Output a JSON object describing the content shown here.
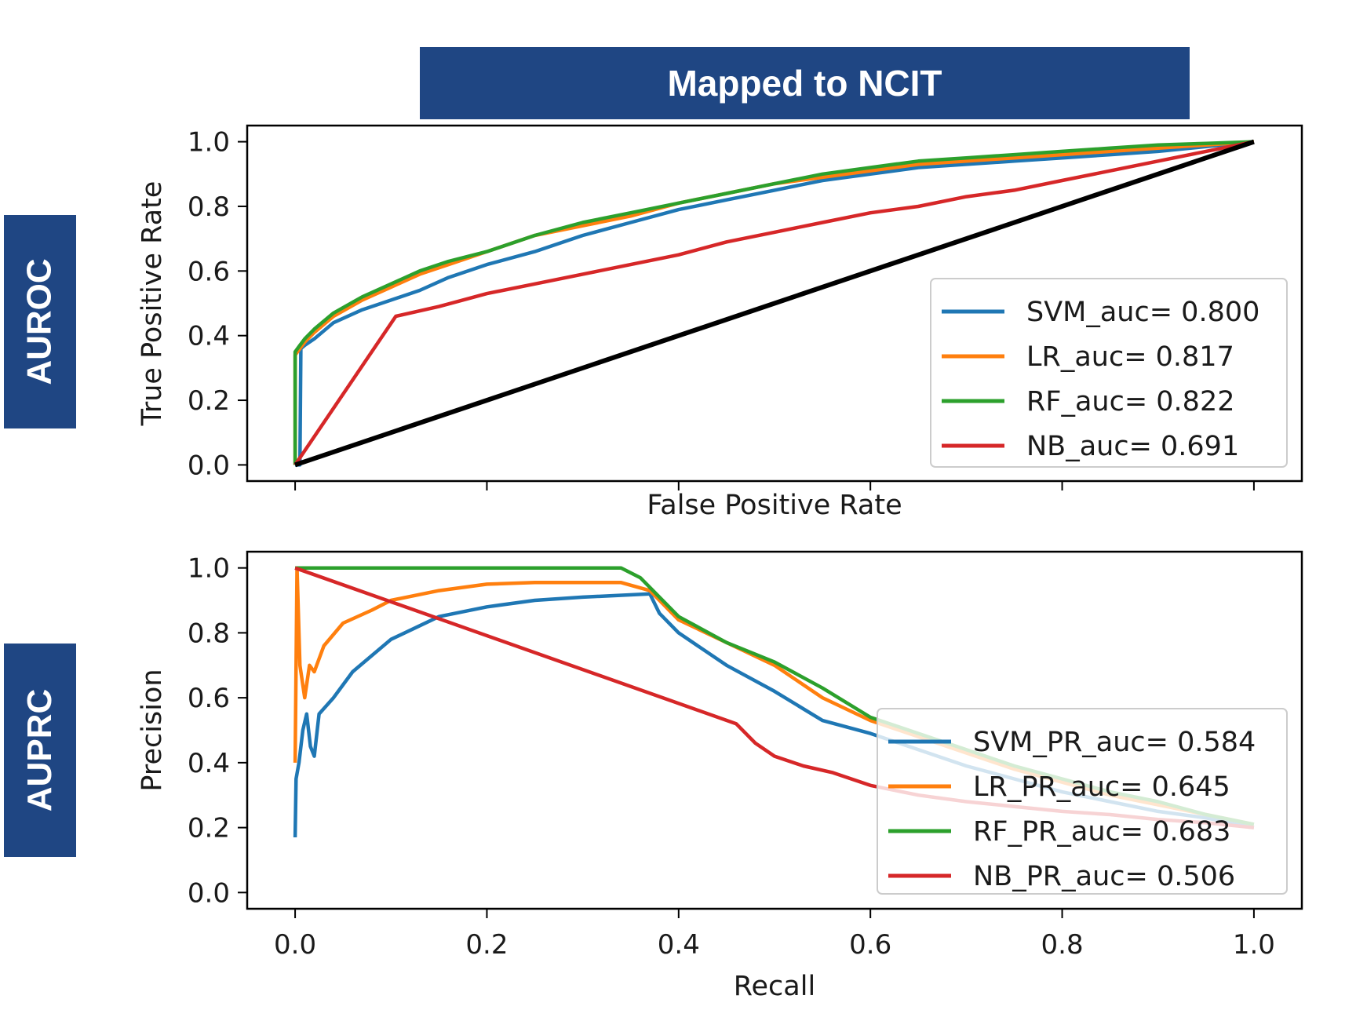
{
  "title": "Mapped to NCIT",
  "side_labels": {
    "top": "AUROC",
    "bottom": "AUPRC"
  },
  "chart_data": [
    {
      "type": "line",
      "xlabel": "False Positive Rate",
      "ylabel": "True Positive Rate",
      "xlim": [
        -0.05,
        1.05
      ],
      "ylim": [
        -0.05,
        1.05
      ],
      "xticks": [
        0.0,
        0.2,
        0.4,
        0.6,
        0.8,
        1.0
      ],
      "xtick_labels_visible": false,
      "yticks": [
        0.0,
        0.2,
        0.4,
        0.6,
        0.8,
        1.0
      ],
      "ytick_labels": [
        "0.0",
        "0.2",
        "0.4",
        "0.6",
        "0.8",
        "1.0"
      ],
      "legend_position": "lower-right",
      "series": [
        {
          "name": "SVM_auc= 0.800",
          "color": "#1f77b4",
          "x": [
            0,
            0.005,
            0.006,
            0.01,
            0.02,
            0.04,
            0.07,
            0.1,
            0.13,
            0.16,
            0.2,
            0.25,
            0.3,
            0.35,
            0.4,
            0.45,
            0.5,
            0.55,
            0.6,
            0.65,
            0.7,
            0.75,
            0.8,
            0.85,
            0.9,
            0.95,
            1.0
          ],
          "y": [
            0,
            0.0,
            0.36,
            0.37,
            0.39,
            0.44,
            0.48,
            0.51,
            0.54,
            0.58,
            0.62,
            0.66,
            0.71,
            0.75,
            0.79,
            0.82,
            0.85,
            0.88,
            0.9,
            0.92,
            0.93,
            0.94,
            0.95,
            0.96,
            0.97,
            0.985,
            1.0
          ]
        },
        {
          "name": "LR_auc= 0.817",
          "color": "#ff7f0e",
          "x": [
            0,
            0.0,
            0.005,
            0.01,
            0.02,
            0.04,
            0.07,
            0.1,
            0.13,
            0.16,
            0.2,
            0.25,
            0.3,
            0.35,
            0.4,
            0.45,
            0.5,
            0.55,
            0.6,
            0.65,
            0.7,
            0.75,
            0.8,
            0.85,
            0.9,
            0.95,
            1.0
          ],
          "y": [
            0,
            0.34,
            0.36,
            0.38,
            0.41,
            0.46,
            0.51,
            0.55,
            0.59,
            0.62,
            0.66,
            0.71,
            0.74,
            0.77,
            0.81,
            0.84,
            0.87,
            0.89,
            0.91,
            0.93,
            0.94,
            0.95,
            0.96,
            0.97,
            0.98,
            0.99,
            1.0
          ]
        },
        {
          "name": "RF_auc= 0.822",
          "color": "#2ca02c",
          "x": [
            0,
            0.0,
            0.005,
            0.01,
            0.02,
            0.04,
            0.07,
            0.1,
            0.13,
            0.16,
            0.2,
            0.25,
            0.3,
            0.35,
            0.4,
            0.45,
            0.5,
            0.55,
            0.6,
            0.65,
            0.7,
            0.75,
            0.8,
            0.85,
            0.9,
            0.95,
            1.0
          ],
          "y": [
            0,
            0.35,
            0.37,
            0.39,
            0.42,
            0.47,
            0.52,
            0.56,
            0.6,
            0.63,
            0.66,
            0.71,
            0.75,
            0.78,
            0.81,
            0.84,
            0.87,
            0.9,
            0.92,
            0.94,
            0.95,
            0.96,
            0.97,
            0.98,
            0.99,
            0.995,
            1.0
          ]
        },
        {
          "name": "NB_auc= 0.691",
          "color": "#d62728",
          "x": [
            0,
            0.105,
            0.15,
            0.2,
            0.25,
            0.3,
            0.35,
            0.4,
            0.45,
            0.5,
            0.55,
            0.6,
            0.65,
            0.7,
            0.75,
            0.8,
            0.85,
            0.9,
            0.95,
            1.0
          ],
          "y": [
            0,
            0.46,
            0.49,
            0.53,
            0.56,
            0.59,
            0.62,
            0.65,
            0.69,
            0.72,
            0.75,
            0.78,
            0.8,
            0.83,
            0.85,
            0.88,
            0.91,
            0.94,
            0.97,
            1.0
          ]
        },
        {
          "name": "",
          "color": "#000000",
          "x": [
            0,
            1
          ],
          "y": [
            0,
            1
          ]
        }
      ]
    },
    {
      "type": "line",
      "xlabel": "Recall",
      "ylabel": "Precision",
      "xlim": [
        -0.05,
        1.05
      ],
      "ylim": [
        -0.05,
        1.05
      ],
      "xticks": [
        0.0,
        0.2,
        0.4,
        0.6,
        0.8,
        1.0
      ],
      "xtick_labels": [
        "0.0",
        "0.2",
        "0.4",
        "0.6",
        "0.8",
        "1.0"
      ],
      "yticks": [
        0.0,
        0.2,
        0.4,
        0.6,
        0.8,
        1.0
      ],
      "ytick_labels": [
        "0.0",
        "0.2",
        "0.4",
        "0.6",
        "0.8",
        "1.0"
      ],
      "legend_position": "lower-right",
      "series": [
        {
          "name": "SVM_PR_auc= 0.584",
          "color": "#1f77b4",
          "x": [
            0,
            0.001,
            0.004,
            0.008,
            0.012,
            0.016,
            0.02,
            0.025,
            0.04,
            0.06,
            0.1,
            0.15,
            0.2,
            0.25,
            0.3,
            0.37,
            0.38,
            0.4,
            0.45,
            0.5,
            0.55,
            0.6,
            0.65,
            0.7,
            0.75,
            0.8,
            0.85,
            0.9,
            0.95,
            1.0
          ],
          "y": [
            0.17,
            0.35,
            0.4,
            0.5,
            0.55,
            0.45,
            0.42,
            0.55,
            0.6,
            0.68,
            0.78,
            0.85,
            0.88,
            0.9,
            0.91,
            0.92,
            0.86,
            0.8,
            0.7,
            0.62,
            0.53,
            0.49,
            0.44,
            0.39,
            0.35,
            0.31,
            0.28,
            0.25,
            0.23,
            0.2
          ]
        },
        {
          "name": "LR_PR_auc= 0.645",
          "color": "#ff7f0e",
          "x": [
            0,
            0.002,
            0.005,
            0.01,
            0.015,
            0.02,
            0.03,
            0.05,
            0.08,
            0.1,
            0.15,
            0.2,
            0.25,
            0.3,
            0.34,
            0.37,
            0.4,
            0.45,
            0.5,
            0.55,
            0.6,
            0.65,
            0.7,
            0.75,
            0.8,
            0.85,
            0.9,
            0.95,
            1.0
          ],
          "y": [
            0.4,
            1.0,
            0.7,
            0.6,
            0.7,
            0.68,
            0.76,
            0.83,
            0.87,
            0.9,
            0.93,
            0.95,
            0.955,
            0.955,
            0.955,
            0.93,
            0.84,
            0.77,
            0.7,
            0.6,
            0.53,
            0.48,
            0.43,
            0.38,
            0.34,
            0.3,
            0.27,
            0.24,
            0.21
          ]
        },
        {
          "name": "RF_PR_auc= 0.683",
          "color": "#2ca02c",
          "x": [
            0,
            0.34,
            0.36,
            0.4,
            0.45,
            0.5,
            0.55,
            0.6,
            0.65,
            0.7,
            0.75,
            0.8,
            0.85,
            0.9,
            0.95,
            1.0
          ],
          "y": [
            1.0,
            1.0,
            0.97,
            0.85,
            0.77,
            0.71,
            0.63,
            0.54,
            0.49,
            0.44,
            0.39,
            0.35,
            0.31,
            0.28,
            0.24,
            0.21
          ]
        },
        {
          "name": "NB_PR_auc= 0.506",
          "color": "#d62728",
          "x": [
            0,
            0.46,
            0.48,
            0.5,
            0.53,
            0.56,
            0.6,
            0.65,
            0.7,
            0.75,
            0.8,
            0.85,
            0.9,
            0.95,
            1.0
          ],
          "y": [
            1.0,
            0.52,
            0.46,
            0.42,
            0.39,
            0.37,
            0.33,
            0.3,
            0.28,
            0.265,
            0.25,
            0.24,
            0.225,
            0.215,
            0.2
          ]
        }
      ]
    }
  ]
}
